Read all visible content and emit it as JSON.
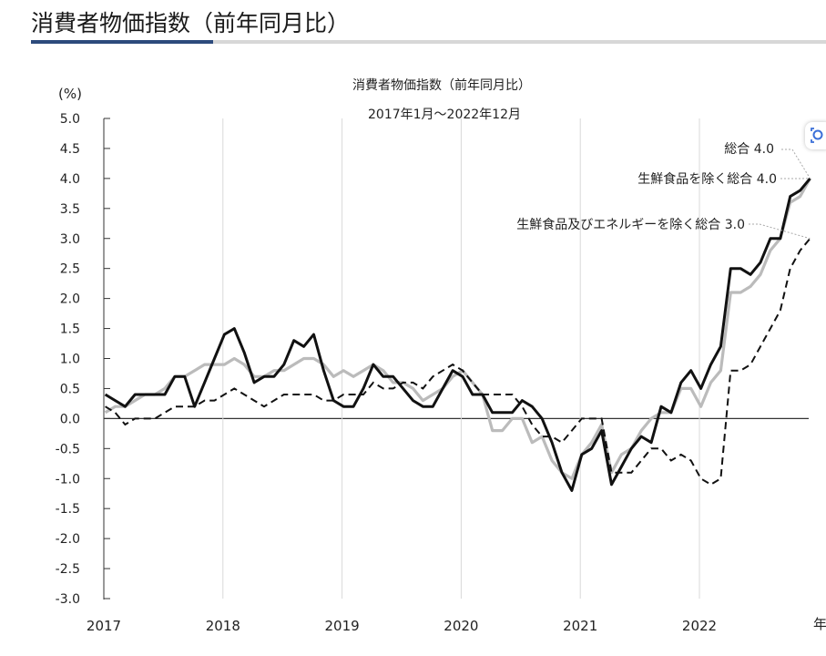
{
  "header": {
    "title": "消費者物価指数（前年同月比）"
  },
  "icons": {
    "zoom": "zoom-icon"
  },
  "chart_data": {
    "type": "line",
    "title": "消費者物価指数（前年同月比）",
    "subtitle": "2017年1月～2022年12月",
    "ylabel": "(%)",
    "xlabel": "年",
    "ylim": [
      -3.0,
      5.0
    ],
    "y_ticks": [
      "5.0",
      "4.5",
      "4.0",
      "3.5",
      "3.0",
      "2.5",
      "2.0",
      "1.5",
      "1.0",
      "0.5",
      "0.0",
      "-0.5",
      "-1.0",
      "-1.5",
      "-2.0",
      "-2.5",
      "-3.0"
    ],
    "x_ticks": [
      "2017",
      "2018",
      "2019",
      "2020",
      "2021",
      "2022"
    ],
    "x_unit": "年",
    "grid": "vertical lines at year boundaries",
    "colors": {
      "sogo": "#111111",
      "core": "#bbbbbb",
      "core_core": "#111111",
      "zero": "#333333"
    },
    "series": [
      {
        "name": "総合",
        "label": "総合  4.0",
        "style": "solid-black",
        "values": [
          0.4,
          0.3,
          0.2,
          0.4,
          0.4,
          0.4,
          0.4,
          0.7,
          0.7,
          0.2,
          0.6,
          1.0,
          1.4,
          1.5,
          1.1,
          0.6,
          0.7,
          0.7,
          0.9,
          1.3,
          1.2,
          1.4,
          0.8,
          0.3,
          0.2,
          0.2,
          0.5,
          0.9,
          0.7,
          0.7,
          0.5,
          0.3,
          0.2,
          0.2,
          0.5,
          0.8,
          0.7,
          0.4,
          0.4,
          0.1,
          0.1,
          0.1,
          0.3,
          0.2,
          0.0,
          -0.4,
          -0.9,
          -1.2,
          -0.6,
          -0.5,
          -0.2,
          -1.1,
          -0.8,
          -0.5,
          -0.3,
          -0.4,
          0.2,
          0.1,
          0.6,
          0.8,
          0.5,
          0.9,
          1.2,
          2.5,
          2.5,
          2.4,
          2.6,
          3.0,
          3.0,
          3.7,
          3.8,
          4.0
        ]
      },
      {
        "name": "生鮮食品を除く総合",
        "label": "生鮮食品を除く総合  4.0",
        "style": "solid-gray",
        "values": [
          0.1,
          0.2,
          0.2,
          0.3,
          0.4,
          0.4,
          0.5,
          0.7,
          0.7,
          0.8,
          0.9,
          0.9,
          0.9,
          1.0,
          0.9,
          0.7,
          0.7,
          0.8,
          0.8,
          0.9,
          1.0,
          1.0,
          0.9,
          0.7,
          0.8,
          0.7,
          0.8,
          0.9,
          0.8,
          0.6,
          0.6,
          0.5,
          0.3,
          0.4,
          0.5,
          0.7,
          0.8,
          0.6,
          0.4,
          -0.2,
          -0.2,
          0.0,
          0.0,
          -0.4,
          -0.3,
          -0.7,
          -0.9,
          -1.0,
          -0.6,
          -0.4,
          -0.1,
          -0.9,
          -0.6,
          -0.5,
          -0.2,
          0.0,
          0.1,
          0.1,
          0.5,
          0.5,
          0.2,
          0.6,
          0.8,
          2.1,
          2.1,
          2.2,
          2.4,
          2.8,
          3.0,
          3.6,
          3.7,
          4.0
        ]
      },
      {
        "name": "生鮮食品及びエネルギーを除く総合",
        "label": "生鮮食品及びエネルギーを除く総合  3.0",
        "style": "dashed-black",
        "values": [
          0.2,
          0.1,
          -0.1,
          0.0,
          0.0,
          0.0,
          0.1,
          0.2,
          0.2,
          0.2,
          0.3,
          0.3,
          0.4,
          0.5,
          0.4,
          0.3,
          0.2,
          0.3,
          0.4,
          0.4,
          0.4,
          0.4,
          0.3,
          0.3,
          0.4,
          0.4,
          0.4,
          0.6,
          0.5,
          0.5,
          0.6,
          0.6,
          0.5,
          0.7,
          0.8,
          0.9,
          0.8,
          0.6,
          0.4,
          0.4,
          0.4,
          0.4,
          0.2,
          -0.1,
          -0.3,
          -0.3,
          -0.4,
          -0.2,
          0.0,
          0.0,
          0.0,
          -0.9,
          -0.9,
          -0.9,
          -0.7,
          -0.5,
          -0.5,
          -0.7,
          -0.6,
          -0.7,
          -1.0,
          -1.1,
          -1.0,
          0.8,
          0.8,
          0.9,
          1.2,
          1.5,
          1.8,
          2.5,
          2.8,
          3.0
        ]
      }
    ]
  }
}
